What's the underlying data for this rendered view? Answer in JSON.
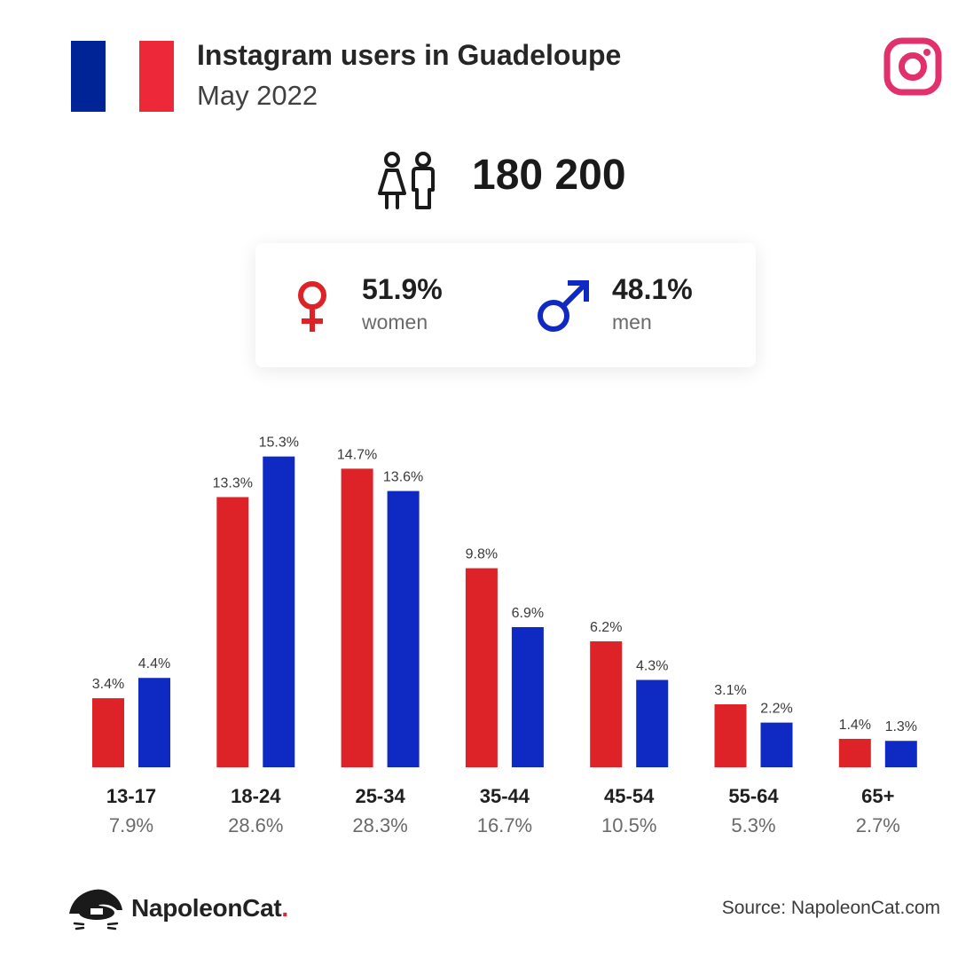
{
  "header": {
    "title": "Instagram users in Guadeloupe",
    "subtitle": "May 2022",
    "flag_colors": [
      "#002395",
      "#ffffff",
      "#ed2939"
    ],
    "flag_icon": "france-flag-icon",
    "platform_icon": "instagram-icon",
    "platform_color": "#e1306c"
  },
  "total": {
    "value": "180 200",
    "icon": "people-icon"
  },
  "gender": {
    "women": {
      "percent": "51.9%",
      "label": "women",
      "icon": "female-symbol-icon",
      "color": "#dd2228"
    },
    "men": {
      "percent": "48.1%",
      "label": "men",
      "icon": "male-symbol-icon",
      "color": "#0f2ac2"
    }
  },
  "chart_data": {
    "type": "bar",
    "categories": [
      "13-17",
      "18-24",
      "25-34",
      "35-44",
      "45-54",
      "55-64",
      "65+"
    ],
    "category_totals": [
      "7.9%",
      "28.6%",
      "28.3%",
      "16.7%",
      "10.5%",
      "5.3%",
      "2.7%"
    ],
    "series": [
      {
        "values": [
          3.4,
          13.3,
          14.7,
          9.8,
          6.2,
          3.1,
          1.4
        ],
        "color": "#dd2228"
      },
      {
        "values": [
          4.4,
          15.3,
          13.6,
          6.9,
          4.3,
          2.2,
          1.3
        ],
        "color": "#0f2ac2"
      }
    ],
    "value_suffix": "%",
    "ylim": [
      0,
      16
    ],
    "grid": false,
    "legend": "none"
  },
  "footer": {
    "brand_name": "NapoleonCat",
    "brand_dot": ".",
    "source": "Source: NapoleonCat.com"
  }
}
